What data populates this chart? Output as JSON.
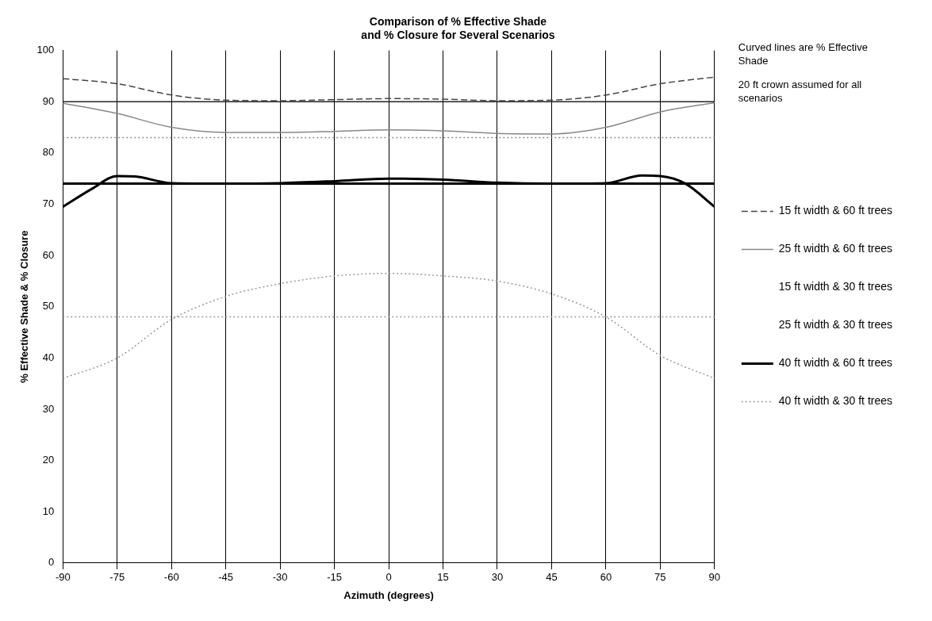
{
  "chart_data": {
    "type": "line",
    "title": [
      "Comparison of % Effective Shade",
      "and % Closure for Several Scenarios"
    ],
    "xlabel": "Azimuth (degrees)",
    "ylabel": "% Effective Shade & % Closure",
    "annotations": [
      "Curved lines are % Effective Shade",
      "20 ft crown assumed for all scenarios"
    ],
    "xlim": [
      -90,
      90
    ],
    "xticks": [
      -90,
      -75,
      -60,
      -45,
      -30,
      -15,
      0,
      15,
      30,
      45,
      60,
      75,
      90
    ],
    "ylim": [
      0,
      100
    ],
    "yticks": [
      0,
      10,
      20,
      30,
      40,
      50,
      60,
      70,
      80,
      90,
      100
    ],
    "grid": "x",
    "legend": "right",
    "marker": "none",
    "series": [
      {
        "name": "15 ft width & 60 ft trees",
        "color": "#444444",
        "line_style": "dashed",
        "x": [
          -90,
          -75,
          -60,
          -45,
          -30,
          -15,
          0,
          15,
          30,
          45,
          60,
          75,
          90
        ],
        "values": [
          94.5,
          93.5,
          91.3,
          90.3,
          90.2,
          90.4,
          90.6,
          90.5,
          90.2,
          90.3,
          91.3,
          93.5,
          94.8
        ]
      },
      {
        "name": "25 ft width & 60 ft trees",
        "color": "#888888",
        "line_style": "solid",
        "x": [
          -90,
          -75,
          -60,
          -45,
          -30,
          -15,
          0,
          15,
          30,
          45,
          60,
          75,
          90
        ],
        "values": [
          89.7,
          87.7,
          85,
          84,
          84,
          84.2,
          84.5,
          84.3,
          83.8,
          83.7,
          85,
          88,
          89.8
        ]
      },
      {
        "name": "15 ft width & 30 ft trees"
      },
      {
        "name": "25 ft width & 30 ft trees"
      },
      {
        "name": "40 ft width & 60 ft trees",
        "color": "#000000",
        "line_style": "solid",
        "x": [
          -90,
          -82,
          -75,
          -70,
          -60,
          -45,
          -30,
          -15,
          0,
          15,
          30,
          45,
          60,
          70,
          75,
          82,
          90
        ],
        "values": [
          69.5,
          73,
          75.5,
          75.4,
          74.1,
          74,
          74.1,
          74.5,
          75,
          74.8,
          74.2,
          74,
          74.1,
          75.6,
          75.5,
          74,
          69.5
        ]
      },
      {
        "name": "40 ft width & 30 ft trees",
        "color": "#999999",
        "line_style": "dotted",
        "x": [
          -90,
          -75,
          -60,
          -45,
          -30,
          -15,
          0,
          15,
          30,
          45,
          60,
          75,
          90
        ],
        "values": [
          36,
          40,
          47.5,
          52,
          54.5,
          56,
          56.5,
          56,
          55,
          52.5,
          48,
          40.5,
          36
        ]
      },
      {
        "color": "#222222",
        "line_style": "solid",
        "x": [
          -90,
          90
        ],
        "values": [
          90,
          90
        ]
      },
      {
        "color": "#888888",
        "line_style": "dotted",
        "x": [
          -90,
          90
        ],
        "values": [
          83,
          83
        ]
      },
      {
        "color": "#000000",
        "line_style": "solid",
        "x": [
          -90,
          90
        ],
        "values": [
          74,
          74
        ]
      },
      {
        "color": "#999999",
        "line_style": "dotted",
        "x": [
          -90,
          90
        ],
        "values": [
          48,
          48
        ]
      }
    ]
  }
}
